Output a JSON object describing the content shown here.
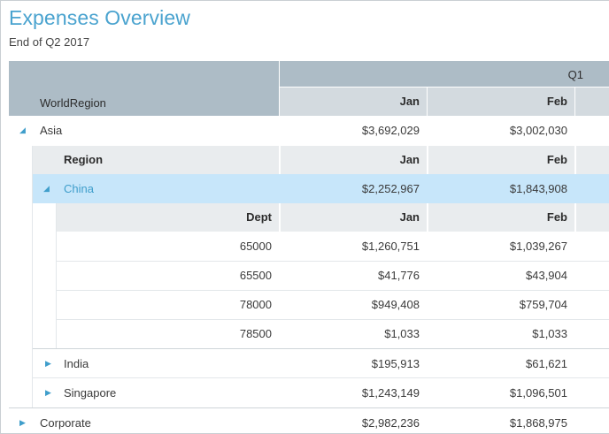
{
  "title": "Expenses Overview",
  "subtitle": "End of Q2 2017",
  "header": {
    "dimension": "WorldRegion",
    "quarter": "Q1",
    "months": [
      "Jan",
      "Feb"
    ]
  },
  "rows": {
    "asia": {
      "label": "Asia",
      "jan": "$3,692,029",
      "feb": "$3,002,030"
    },
    "region_header": {
      "label": "Region",
      "jan": "Jan",
      "feb": "Feb"
    },
    "china": {
      "label": "China",
      "jan": "$2,252,967",
      "feb": "$1,843,908"
    },
    "dept_header": {
      "label": "Dept",
      "jan": "Jan",
      "feb": "Feb"
    },
    "depts": [
      {
        "label": "65000",
        "jan": "$1,260,751",
        "feb": "$1,039,267"
      },
      {
        "label": "65500",
        "jan": "$41,776",
        "feb": "$43,904"
      },
      {
        "label": "78000",
        "jan": "$949,408",
        "feb": "$759,704"
      },
      {
        "label": "78500",
        "jan": "$1,033",
        "feb": "$1,033"
      }
    ],
    "india": {
      "label": "India",
      "jan": "$195,913",
      "feb": "$61,621"
    },
    "singapore": {
      "label": "Singapore",
      "jan": "$1,243,149",
      "feb": "$1,096,501"
    },
    "corporate": {
      "label": "Corporate",
      "jan": "$2,982,236",
      "feb": "$1,868,975"
    }
  },
  "icons": {
    "expanded": "triangle-down-right-icon",
    "collapsed": "triangle-right-icon"
  }
}
